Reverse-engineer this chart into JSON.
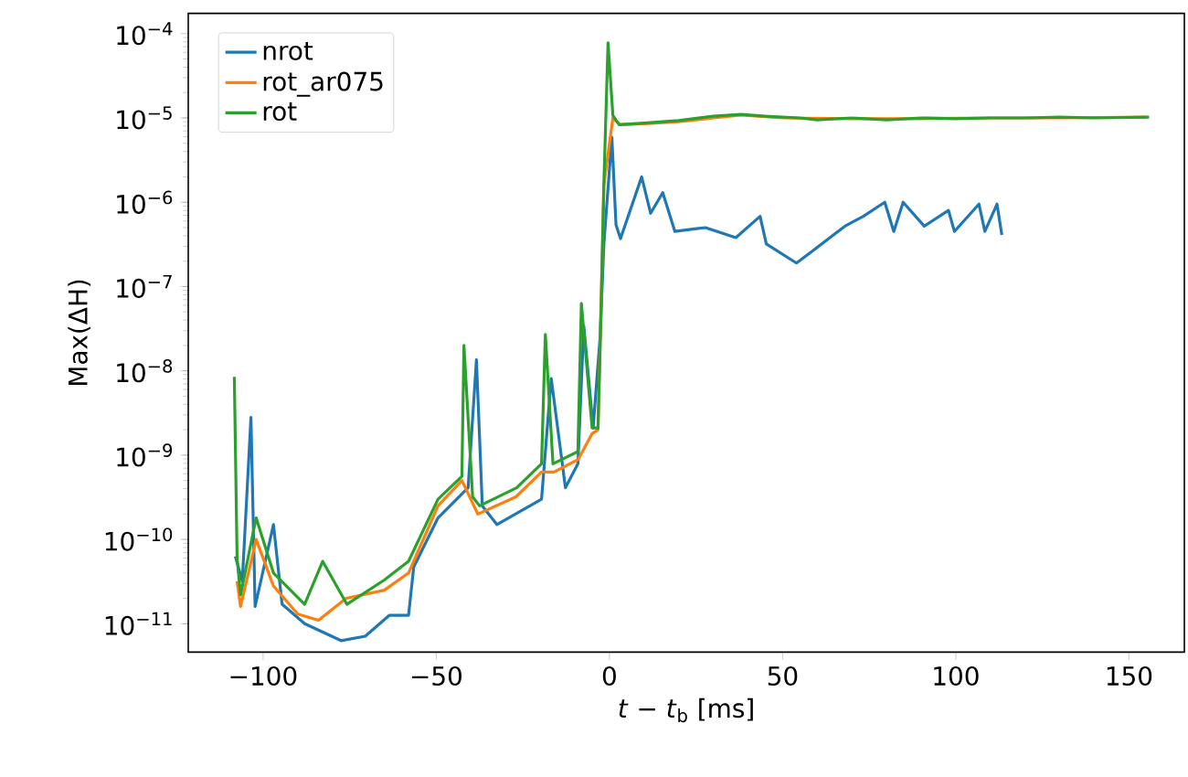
{
  "chart_data": {
    "type": "line",
    "xlabel": "*t* − *t*$_{b}$ [ms]",
    "ylabel": "Max(ΔH)",
    "xlim": [
      -121.6,
      166
    ],
    "ylim": [
      4.6e-12,
      0.000174
    ],
    "log": "y",
    "legend": "top left",
    "grid": false,
    "marker": "none",
    "line_style": "solid",
    "xticks": [
      {
        "value": -100,
        "label": "−100"
      },
      {
        "value": -50,
        "label": "−50"
      },
      0,
      50,
      100,
      150
    ],
    "yticks": [
      {
        "value": 1e-11,
        "label": "10$^{−11}$"
      },
      {
        "value": 1e-10,
        "label": "10$^{−10}$"
      },
      {
        "value": 1e-09,
        "label": "10$^{−9}$"
      },
      {
        "value": 1e-08,
        "label": "10$^{−8}$"
      },
      {
        "value": 1e-07,
        "label": "10$^{−7}$"
      },
      {
        "value": 1e-06,
        "label": "10$^{−6}$"
      },
      {
        "value": 1e-05,
        "label": "10$^{−5}$"
      },
      {
        "value": 0.0001,
        "label": "10$^{−4}$"
      }
    ],
    "series": [
      {
        "name": "nrot",
        "color": "#1f77b4",
        "x": [
          -108,
          -106,
          -103.5,
          -102.3,
          -97,
          -94.5,
          -88,
          -77.5,
          -70.5,
          -63.5,
          -58,
          -56.5,
          -49.5,
          -40.8,
          -38.4,
          -36.7,
          -32.5,
          -19.6,
          -16.8,
          -12.7,
          -9.1,
          -7.4,
          -4.7,
          -2.7,
          -1.6,
          0.7,
          1.9,
          3.2,
          9.3,
          11.9,
          15.4,
          18.9,
          27.7,
          36.5,
          43.5,
          45.3,
          54,
          58.4,
          68,
          73.3,
          79.5,
          82.1,
          84.8,
          90.9,
          97.9,
          99.6,
          106.7,
          108.4,
          111.9,
          113.3
        ],
        "values": [
          6.3e-11,
          3.2e-11,
          2.8e-09,
          1.6e-11,
          1.5e-10,
          1.7e-11,
          1e-11,
          6.3e-12,
          7.1e-12,
          1.26e-11,
          1.26e-11,
          4.7e-11,
          1.8e-10,
          4.1e-10,
          1.35e-08,
          2.5e-10,
          1.5e-10,
          3e-10,
          8.1e-09,
          4.1e-10,
          7.9e-10,
          3.4e-08,
          2.1e-09,
          2.5e-08,
          3.2e-07,
          5.9e-06,
          5.4e-07,
          3.7e-07,
          2e-06,
          7.4e-07,
          1.3e-06,
          4.5e-07,
          5e-07,
          3.8e-07,
          6.8e-07,
          3.2e-07,
          1.9e-07,
          2.6e-07,
          5.2e-07,
          6.8e-07,
          1e-06,
          4.5e-07,
          1e-06,
          5.2e-07,
          8e-07,
          4.5e-07,
          9.5e-07,
          4.5e-07,
          9.5e-07,
          4.1e-07
        ]
      },
      {
        "name": "rot_ar075",
        "color": "#ff7f0e",
        "x": [
          -107.5,
          -106.5,
          -102,
          -97,
          -90,
          -84,
          -76,
          -65,
          -58,
          -49.5,
          -42.6,
          -42,
          -38,
          -27,
          -19.6,
          -18.5,
          -16,
          -9,
          -8,
          -5,
          -3.3,
          -2,
          -1.6,
          -0.4,
          1,
          3,
          10,
          20,
          30,
          38,
          50,
          70,
          90,
          110,
          130,
          155
        ],
        "values": [
          3.2e-11,
          1.6e-11,
          1e-10,
          2.8e-11,
          1.3e-11,
          1.1e-11,
          2e-11,
          2.5e-11,
          4e-11,
          2.5e-10,
          5e-10,
          null,
          2e-10,
          3.2e-10,
          6.3e-10,
          null,
          6.3e-10,
          8.9e-10,
          null,
          1.8e-09,
          2e-09,
          3.2e-07,
          1.6e-06,
          null,
          1e-05,
          8.3e-06,
          8.5e-06,
          9e-06,
          1e-05,
          1.08e-05,
          1e-05,
          9.8e-06,
          9.8e-06,
          1e-05,
          1e-05,
          1.02e-05
        ]
      },
      {
        "name": "rot",
        "color": "#2ca02c",
        "x": [
          -108.3,
          -107.5,
          -106.5,
          -102,
          -97,
          -88,
          -82.8,
          -75.8,
          -65,
          -58,
          -49.5,
          -42.6,
          -42,
          -39.5,
          -37.5,
          -26.8,
          -19.6,
          -18.5,
          -16.3,
          -9.1,
          -8.1,
          -5,
          -3.3,
          -2.5,
          -1.6,
          -0.4,
          1,
          2.8,
          10,
          20,
          30,
          38,
          45,
          55,
          60,
          70,
          80,
          90,
          100,
          110,
          120,
          130,
          140,
          155.8
        ],
        "values": [
          8.5e-09,
          6e-11,
          2.2e-11,
          1.8e-10,
          4e-11,
          1.7e-11,
          5.5e-11,
          1.7e-11,
          3.3e-11,
          5.5e-11,
          3e-10,
          5.6e-10,
          2e-08,
          3.2e-10,
          2.5e-10,
          4.1e-10,
          7.9e-10,
          2.7e-08,
          7.9e-10,
          1.1e-09,
          6.3e-08,
          2.1e-09,
          2.1e-09,
          3.6e-08,
          1.7e-06,
          7.8e-05,
          1.07e-05,
          8.3e-06,
          8.7e-06,
          9.3e-06,
          1.05e-05,
          1.1e-05,
          1.05e-05,
          1e-05,
          9.5e-06,
          1e-05,
          9.5e-06,
          1e-05,
          9.8e-06,
          1e-05,
          1e-05,
          1.02e-05,
          1e-05,
          1.02e-05
        ]
      }
    ]
  }
}
